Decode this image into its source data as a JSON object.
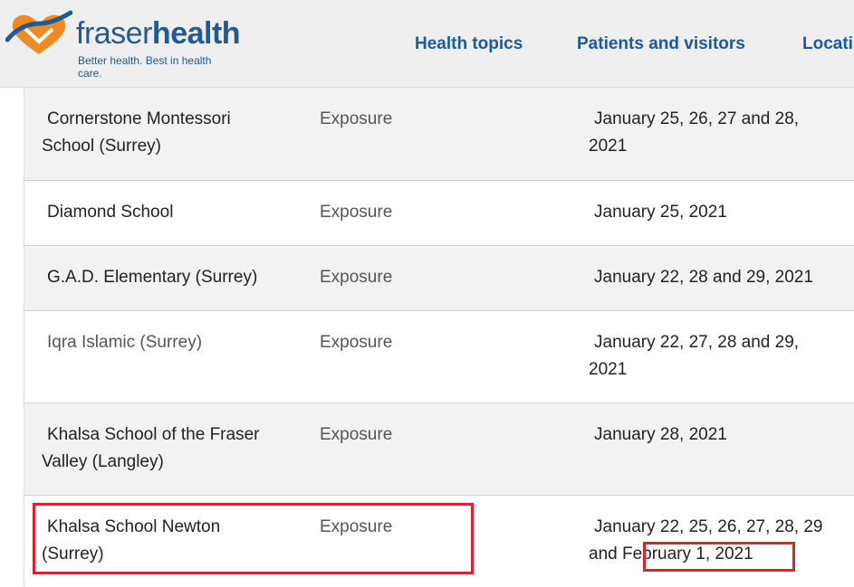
{
  "header": {
    "logo": {
      "word_part1": "fraser",
      "word_part2": "health",
      "tagline": "Better health. Best in health care."
    },
    "nav": [
      {
        "label": "Health topics"
      },
      {
        "label": "Patients and visitors"
      },
      {
        "label": "Locati"
      }
    ]
  },
  "table": {
    "rows": [
      {
        "name": "Cornerstone Montessori School (Surrey)",
        "type": "Exposure",
        "dates": "January 25, 26, 27 and 28, 2021"
      },
      {
        "name": "Diamond School",
        "type": "Exposure",
        "dates": "January 25, 2021"
      },
      {
        "name": "G.A.D. Elementary (Surrey)",
        "type": "Exposure",
        "dates": "January 22, 28 and 29, 2021"
      },
      {
        "name": "Iqra Islamic (Surrey)",
        "type": "Exposure",
        "dates": "January 22, 27, 28 and 29, 2021"
      },
      {
        "name": "Khalsa School of the Fraser Valley (Langley)",
        "type": "Exposure",
        "dates": "January 28, 2021"
      },
      {
        "name": "Khalsa School Newton (Surrey)",
        "type": "Exposure",
        "dates_prefix": "January 22, 25, 26, 27, 28, 29 and",
        "dates_highlight": "February 1, 2021"
      }
    ]
  },
  "colors": {
    "nav_text": "#1a5aa0",
    "logo_blue": "#1f5a96",
    "logo_orange": "#f08a24",
    "highlight_red": "#d9232e",
    "header_bg": "#efefef",
    "row_gray": "#f2f2f2"
  }
}
